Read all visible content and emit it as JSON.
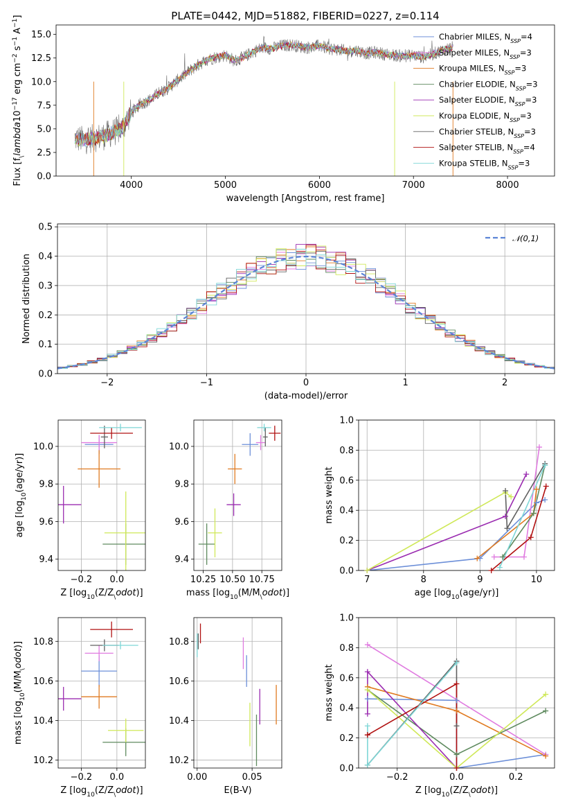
{
  "colors": {
    "Chabrier MILES": "#6c8fd8",
    "Salpeter MILES": "#e07be0",
    "Kroupa MILES": "#e07a20",
    "Chabrier ELODIE": "#5e8a5e",
    "Salpeter ELODIE": "#9a2bb0",
    "Kroupa ELODIE": "#cfe858",
    "Chabrier STELIB": "#606060",
    "Salpeter STELIB": "#b01010",
    "Kroupa STELIB": "#7ed6d6",
    "gaussian": "#5b84d6"
  },
  "chart_data": [
    {
      "id": "spectrum",
      "type": "line",
      "title": "PLATE=0442, MJD=51882, FIBERID=0227, z=0.114",
      "xlabel": "wavelength [Angstrom, rest frame]",
      "ylabel": "Flux [f$_\\lambda$10$^{-17}$ erg cm$^{-2}$ s$^{-1}$ A$^{-1}$]",
      "xlim": [
        3200,
        8500
      ],
      "ylim": [
        0,
        16
      ],
      "xticks": [
        "4000",
        "5000",
        "6000",
        "7000",
        "8000"
      ],
      "yticks": [
        "0.0",
        "2.5",
        "5.0",
        "7.5",
        "10.0",
        "12.5",
        "15.0"
      ],
      "legend_position": "right",
      "series": [
        {
          "name": "Chabrier MILES",
          "nssp": "4"
        },
        {
          "name": "Salpeter MILES",
          "nssp": "3"
        },
        {
          "name": "Kroupa MILES",
          "nssp": "3"
        },
        {
          "name": "Chabrier ELODIE",
          "nssp": "3"
        },
        {
          "name": "Salpeter ELODIE",
          "nssp": "3"
        },
        {
          "name": "Kroupa ELODIE",
          "nssp": "3"
        },
        {
          "name": "Chabrier STELIB",
          "nssp": "3"
        },
        {
          "name": "Salpeter STELIB",
          "nssp": "4"
        },
        {
          "name": "Kroupa STELIB",
          "nssp": "3"
        }
      ],
      "data_envelope": {
        "x": [
          3400,
          3500,
          3600,
          3700,
          3800,
          3900,
          4000,
          4100,
          4200,
          4300,
          4400,
          4500,
          4600,
          4700,
          4800,
          4900,
          5000,
          5100,
          5200,
          5300,
          5400,
          5500,
          5600,
          5700,
          5800,
          5900,
          6000,
          6100,
          6200,
          6300,
          6400,
          6500,
          6600,
          6700,
          6800,
          6900,
          7000,
          7100,
          7200,
          7300,
          7400
        ],
        "y": [
          4.0,
          3.8,
          4.0,
          4.2,
          4.6,
          5.0,
          6.8,
          7.6,
          8.1,
          8.8,
          9.4,
          10.2,
          11.0,
          11.7,
          12.3,
          12.6,
          12.8,
          12.2,
          12.6,
          13.2,
          13.6,
          13.5,
          13.8,
          13.9,
          13.7,
          13.6,
          13.8,
          13.5,
          13.4,
          13.2,
          13.3,
          13.0,
          13.1,
          12.9,
          12.8,
          12.7,
          12.8,
          12.6,
          12.9,
          13.3,
          13.6
        ]
      }
    },
    {
      "id": "residuals",
      "type": "line",
      "xlabel": "(data-model)/error",
      "ylabel": "Normed distribution",
      "xlim": [
        -2.5,
        2.5
      ],
      "ylim": [
        0,
        0.51
      ],
      "xticks": [
        "−2",
        "−1",
        "0",
        "1",
        "2"
      ],
      "yticks": [
        "0.0",
        "0.1",
        "0.2",
        "0.3",
        "0.4",
        "0.5"
      ],
      "grid": true,
      "legend_position": "top-right",
      "legend": "$\\mathcal{N}(0,1)$",
      "bin_width": 0.1
    },
    {
      "id": "age_vs_Z",
      "type": "scatter",
      "xlabel": "Z [log$_{10}$(Z/Z$_\\odot$)]",
      "ylabel": "age  [log$_{10}$(age/yr)]",
      "xlim": [
        -0.33,
        0.16
      ],
      "ylim": [
        9.34,
        10.14
      ],
      "xticks": [
        "−0.2",
        "0.0"
      ],
      "yticks": [
        "9.4",
        "9.6",
        "9.8",
        "10.0"
      ],
      "grid": true,
      "points": [
        {
          "model": "Chabrier MILES",
          "x": -0.1,
          "y": 10.01,
          "xerr": 0.08,
          "yerr": 0.05
        },
        {
          "model": "Salpeter MILES",
          "x": -0.1,
          "y": 10.02,
          "xerr": 0.1,
          "yerr": 0.04
        },
        {
          "model": "Kroupa MILES",
          "x": -0.1,
          "y": 9.88,
          "xerr": 0.12,
          "yerr": 0.1
        },
        {
          "model": "Chabrier ELODIE",
          "x": 0.05,
          "y": 9.48,
          "xerr": 0.13,
          "yerr": 0.11
        },
        {
          "model": "Salpeter ELODIE",
          "x": -0.3,
          "y": 9.69,
          "xerr": 0.1,
          "yerr": 0.1
        },
        {
          "model": "Kroupa ELODIE",
          "x": 0.05,
          "y": 9.54,
          "xerr": 0.12,
          "yerr": 0.22
        },
        {
          "model": "Chabrier STELIB",
          "x": -0.07,
          "y": 10.05,
          "xerr": 0.02,
          "yerr": 0.06
        },
        {
          "model": "Salpeter STELIB",
          "x": -0.03,
          "y": 10.07,
          "xerr": 0.12,
          "yerr": 0.03
        },
        {
          "model": "Kroupa STELIB",
          "x": 0.02,
          "y": 10.1,
          "xerr": 0.12,
          "yerr": 0.02
        }
      ]
    },
    {
      "id": "age_vs_mass",
      "type": "scatter",
      "xlabel": "mass [log$_{10}$(M/M$_\\odot$)]",
      "xlim": [
        10.17,
        10.92
      ],
      "ylim": [
        9.34,
        10.14
      ],
      "xticks": [
        "10.25",
        "10.50",
        "10.75"
      ],
      "yticks": [
        "9.4",
        "9.6",
        "9.8",
        "10.0"
      ],
      "grid": true,
      "points": [
        {
          "model": "Chabrier MILES",
          "x": 10.65,
          "y": 10.01,
          "xerr": 0.07,
          "yerr": 0.06
        },
        {
          "model": "Salpeter MILES",
          "x": 10.74,
          "y": 10.02,
          "xerr": 0.04,
          "yerr": 0.04
        },
        {
          "model": "Kroupa MILES",
          "x": 10.52,
          "y": 9.88,
          "xerr": 0.06,
          "yerr": 0.08
        },
        {
          "model": "Chabrier ELODIE",
          "x": 10.28,
          "y": 9.48,
          "xerr": 0.07,
          "yerr": 0.11
        },
        {
          "model": "Salpeter ELODIE",
          "x": 10.51,
          "y": 9.69,
          "xerr": 0.06,
          "yerr": 0.06
        },
        {
          "model": "Kroupa ELODIE",
          "x": 10.35,
          "y": 9.54,
          "xerr": 0.06,
          "yerr": 0.13
        },
        {
          "model": "Chabrier STELIB",
          "x": 10.78,
          "y": 10.05,
          "xerr": 0.02,
          "yerr": 0.05
        },
        {
          "model": "Salpeter STELIB",
          "x": 10.86,
          "y": 10.07,
          "xerr": 0.05,
          "yerr": 0.04
        },
        {
          "model": "Kroupa STELIB",
          "x": 10.77,
          "y": 10.1,
          "xerr": 0.06,
          "yerr": 0.02
        }
      ]
    },
    {
      "id": "weight_vs_age",
      "type": "line",
      "xlabel": "age  [log$_{10}$(age/yr)]",
      "ylabel": "mass weight",
      "xlim": [
        6.85,
        10.32
      ],
      "ylim": [
        0,
        1
      ],
      "xticks": [
        "7",
        "8",
        "9",
        "10"
      ],
      "yticks": [
        "0.0",
        "0.2",
        "0.4",
        "0.6",
        "0.8",
        "1.0"
      ],
      "grid": true,
      "series": [
        {
          "model": "Chabrier MILES",
          "x": [
            7.0,
            9.0,
            10.0,
            10.15
          ],
          "y": [
            0.0,
            0.08,
            0.45,
            0.47
          ]
        },
        {
          "model": "Salpeter MILES",
          "x": [
            9.25,
            9.78,
            10.05
          ],
          "y": [
            0.09,
            0.09,
            0.82
          ]
        },
        {
          "model": "Kroupa MILES",
          "x": [
            8.95,
            9.95,
            10.0
          ],
          "y": [
            0.08,
            0.38,
            0.54
          ]
        },
        {
          "model": "Chabrier ELODIE",
          "x": [
            9.4,
            9.95,
            10.15
          ],
          "y": [
            0.09,
            0.38,
            0.7
          ]
        },
        {
          "model": "Salpeter ELODIE",
          "x": [
            7.0,
            9.45,
            9.82
          ],
          "y": [
            0.0,
            0.36,
            0.64
          ]
        },
        {
          "model": "Kroupa ELODIE",
          "x": [
            7.0,
            9.45,
            9.55
          ],
          "y": [
            0.0,
            0.52,
            0.49
          ]
        },
        {
          "model": "Chabrier STELIB",
          "x": [
            9.45,
            9.48,
            10.15
          ],
          "y": [
            0.53,
            0.28,
            0.71
          ]
        },
        {
          "model": "Salpeter STELIB",
          "x": [
            9.2,
            9.9,
            10.17
          ],
          "y": [
            0.0,
            0.22,
            0.56
          ]
        },
        {
          "model": "Kroupa STELIB",
          "x": [
            9.35,
            10.15
          ],
          "y": [
            0.02,
            0.7
          ]
        }
      ]
    },
    {
      "id": "mass_vs_Z",
      "type": "scatter",
      "xlabel": "Z [log$_{10}$(Z/Z$_\\odot$)]",
      "ylabel": "mass [log$_{10}$(M/M$_\\odot$)]",
      "xlim": [
        -0.33,
        0.16
      ],
      "ylim": [
        10.16,
        10.92
      ],
      "xticks": [
        "−0.2",
        "0.0"
      ],
      "yticks": [
        "10.2",
        "10.4",
        "10.6",
        "10.8"
      ],
      "grid": true,
      "points": [
        {
          "model": "Chabrier MILES",
          "x": -0.1,
          "y": 10.65,
          "xerr": 0.1,
          "yerr": 0.08
        },
        {
          "model": "Salpeter MILES",
          "x": -0.1,
          "y": 10.74,
          "xerr": 0.08,
          "yerr": 0.04
        },
        {
          "model": "Kroupa MILES",
          "x": -0.1,
          "y": 10.52,
          "xerr": 0.1,
          "yerr": 0.06
        },
        {
          "model": "Chabrier ELODIE",
          "x": 0.05,
          "y": 10.29,
          "xerr": 0.13,
          "yerr": 0.07
        },
        {
          "model": "Salpeter ELODIE",
          "x": -0.3,
          "y": 10.51,
          "xerr": 0.1,
          "yerr": 0.06
        },
        {
          "model": "Kroupa ELODIE",
          "x": 0.05,
          "y": 10.35,
          "xerr": 0.1,
          "yerr": 0.06
        },
        {
          "model": "Chabrier STELIB",
          "x": -0.07,
          "y": 10.78,
          "xerr": 0.08,
          "yerr": 0.03
        },
        {
          "model": "Salpeter STELIB",
          "x": -0.03,
          "y": 10.86,
          "xerr": 0.12,
          "yerr": 0.04
        },
        {
          "model": "Kroupa STELIB",
          "x": 0.02,
          "y": 10.78,
          "xerr": 0.1,
          "yerr": 0.02
        }
      ]
    },
    {
      "id": "mass_vs_ebv",
      "type": "scatter",
      "xlabel": "E(B-V)",
      "xlim": [
        -0.003,
        0.077
      ],
      "ylim": [
        10.16,
        10.92
      ],
      "xticks": [
        "0.00",
        "0.05"
      ],
      "yticks": [
        "10.2",
        "10.4",
        "10.6",
        "10.8"
      ],
      "grid": true,
      "points": [
        {
          "model": "Chabrier MILES",
          "x": 0.045,
          "y": 10.65,
          "yerr": 0.08
        },
        {
          "model": "Salpeter MILES",
          "x": 0.042,
          "y": 10.74,
          "yerr": 0.08
        },
        {
          "model": "Kroupa MILES",
          "x": 0.072,
          "y": 10.48,
          "yerr": 0.1
        },
        {
          "model": "Chabrier ELODIE",
          "x": 0.054,
          "y": 10.3,
          "yerr": 0.13
        },
        {
          "model": "Salpeter ELODIE",
          "x": 0.057,
          "y": 10.47,
          "yerr": 0.09
        },
        {
          "model": "Kroupa ELODIE",
          "x": 0.048,
          "y": 10.38,
          "yerr": 0.11
        },
        {
          "model": "Chabrier STELIB",
          "x": 0.001,
          "y": 10.8,
          "yerr": 0.04
        },
        {
          "model": "Salpeter STELIB",
          "x": 0.003,
          "y": 10.84,
          "yerr": 0.05
        },
        {
          "model": "Kroupa STELIB",
          "x": 0.0,
          "y": 10.78,
          "yerr": 0.06
        }
      ]
    },
    {
      "id": "weight_vs_Z",
      "type": "line",
      "xlabel": "Z [log$_{10}$(Z/Z$_\\odot$)]",
      "ylabel": "mass weight",
      "xlim": [
        -0.33,
        0.33
      ],
      "ylim": [
        0,
        1
      ],
      "xticks": [
        "−0.2",
        "0.0",
        "0.2"
      ],
      "yticks": [
        "0.0",
        "0.2",
        "0.4",
        "0.6",
        "0.8",
        "1.0"
      ],
      "grid": true,
      "series": [
        {
          "model": "Chabrier MILES",
          "x": [
            -0.3,
            0.0,
            0.0,
            0.3
          ],
          "y": [
            0.46,
            0.45,
            0.0,
            0.09
          ]
        },
        {
          "model": "Salpeter MILES",
          "x": [
            -0.3,
            0.3
          ],
          "y": [
            0.82,
            0.09
          ]
        },
        {
          "model": "Kroupa MILES",
          "x": [
            -0.3,
            0.0,
            0.3
          ],
          "y": [
            0.54,
            0.38,
            0.08
          ]
        },
        {
          "model": "Chabrier ELODIE",
          "x": [
            -0.3,
            0.0,
            0.3
          ],
          "y": [
            0.52,
            0.09,
            0.38
          ]
        },
        {
          "model": "Salpeter ELODIE",
          "x": [
            -0.3,
            -0.3,
            0.0
          ],
          "y": [
            0.36,
            0.64,
            0.0
          ]
        },
        {
          "model": "Kroupa ELODIE",
          "x": [
            -0.3,
            0.0,
            0.3
          ],
          "y": [
            0.52,
            0.0,
            0.49
          ]
        },
        {
          "model": "Chabrier STELIB",
          "x": [
            -0.3,
            0.0,
            0.0
          ],
          "y": [
            0.02,
            0.71,
            0.28
          ]
        },
        {
          "model": "Salpeter STELIB",
          "x": [
            -0.3,
            -0.3,
            0.0,
            0.0
          ],
          "y": [
            0.22,
            0.22,
            0.56,
            0.0
          ]
        },
        {
          "model": "Kroupa STELIB",
          "x": [
            -0.3,
            -0.3,
            0.0
          ],
          "y": [
            0.28,
            0.02,
            0.7
          ]
        }
      ]
    }
  ]
}
